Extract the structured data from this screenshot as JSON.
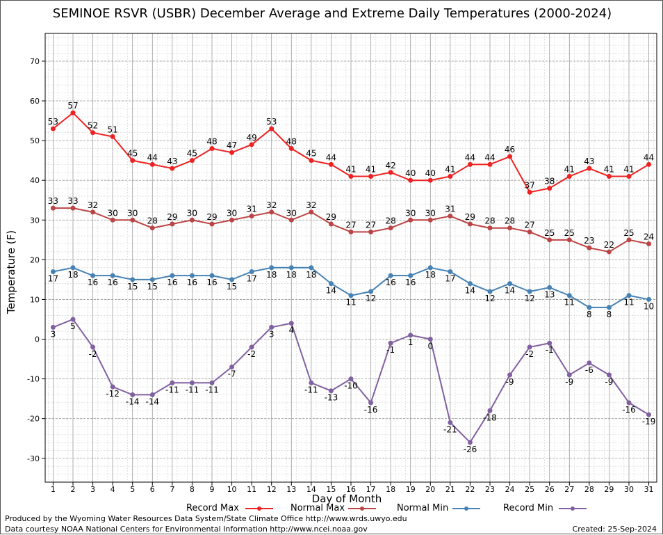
{
  "chart_data": {
    "type": "line",
    "title": "SEMINOE RSVR (USBR) December Average and Extreme Daily Temperatures (2000-2024)",
    "xlabel": "Day of Month",
    "ylabel": "Temperature (F)",
    "x": [
      1,
      2,
      3,
      4,
      5,
      6,
      7,
      8,
      9,
      10,
      11,
      12,
      13,
      14,
      15,
      16,
      17,
      18,
      19,
      20,
      21,
      22,
      23,
      24,
      25,
      26,
      27,
      28,
      29,
      30,
      31
    ],
    "xlim": [
      0.6,
      31.4
    ],
    "ylim": [
      -36,
      77
    ],
    "y_ticks": [
      -30,
      -20,
      -10,
      0,
      10,
      20,
      30,
      40,
      50,
      60,
      70
    ],
    "grid": true,
    "legend_position": "bottom",
    "series": [
      {
        "name": "Record Max",
        "color": "#ee2222",
        "values": [
          53,
          57,
          52,
          51,
          45,
          44,
          43,
          45,
          48,
          47,
          49,
          53,
          48,
          45,
          44,
          41,
          41,
          42,
          40,
          40,
          41,
          44,
          44,
          46,
          37,
          38,
          41,
          43,
          41,
          41,
          44
        ]
      },
      {
        "name": "Normal Max",
        "color": "#bb4444",
        "values": [
          33,
          33,
          32,
          30,
          30,
          28,
          29,
          30,
          29,
          30,
          31,
          32,
          30,
          32,
          29,
          27,
          27,
          28,
          30,
          30,
          31,
          29,
          28,
          28,
          27,
          25,
          25,
          23,
          22,
          25,
          24
        ]
      },
      {
        "name": "Normal Min",
        "color": "#4682b4",
        "values": [
          17,
          18,
          16,
          16,
          15,
          15,
          16,
          16,
          16,
          15,
          17,
          18,
          18,
          18,
          14,
          11,
          12,
          16,
          16,
          18,
          17,
          14,
          12,
          14,
          12,
          13,
          11,
          8,
          8,
          11,
          10
        ]
      },
      {
        "name": "Record Min",
        "color": "#8060a0",
        "values": [
          3,
          5,
          -2,
          -12,
          -14,
          -14,
          -11,
          -11,
          -11,
          -7,
          -2,
          3,
          4,
          -11,
          -13,
          -10,
          -16,
          -1,
          1,
          0,
          -21,
          -26,
          -18,
          -9,
          -2,
          -1,
          -9,
          -6,
          -9,
          -16,
          -19
        ]
      }
    ]
  },
  "footer": {
    "produced_by": "Produced by the Wyoming Water Resources Data System/State Climate Office http://www.wrds.uwyo.edu",
    "courtesy": "Data courtesy NOAA National Centers for Environmental Information http://www.ncei.noaa.gov",
    "created": "Created:  25-Sep-2024"
  }
}
